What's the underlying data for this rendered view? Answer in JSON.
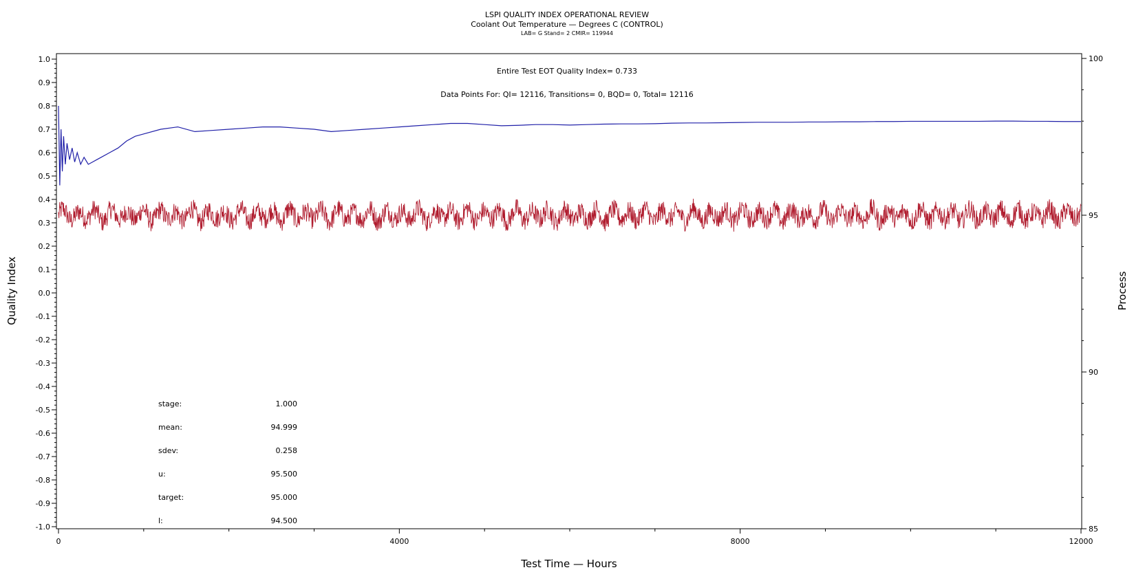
{
  "chart_data": {
    "type": "line",
    "title": "LSPI QUALITY INDEX OPERATIONAL REVIEW",
    "subtitle": "Coolant Out Temperature — Degrees C (CONTROL)",
    "subtitle2": "LAB= G Stand= 2 CMIR= 119944",
    "xlabel": "Test Time — Hours",
    "ylabel_left": "Quality Index",
    "ylabel_right": "Process",
    "xlim": [
      0,
      12000
    ],
    "ylim_left": [
      -1.0,
      1.0
    ],
    "ylim_right": [
      85,
      100
    ],
    "x_ticks": [
      "0",
      "4000",
      "8000",
      "12000"
    ],
    "x_tick_values": [
      0,
      4000,
      8000,
      12000
    ],
    "y_left_ticks": [
      "1.0",
      "0.9",
      "0.8",
      "0.7",
      "0.6",
      "0.5",
      "0.4",
      "0.3",
      "0.2",
      "0.1",
      "0.0",
      "-0.1",
      "-0.2",
      "-0.3",
      "-0.4",
      "-0.5",
      "-0.6",
      "-0.7",
      "-0.8",
      "-0.9",
      "-1.0"
    ],
    "y_left_tick_values": [
      1.0,
      0.9,
      0.8,
      0.7,
      0.6,
      0.5,
      0.4,
      0.3,
      0.2,
      0.1,
      0.0,
      -0.1,
      -0.2,
      -0.3,
      -0.4,
      -0.5,
      -0.6,
      -0.7,
      -0.8,
      -0.9,
      -1.0
    ],
    "y_right_ticks": [
      "100",
      "95",
      "90",
      "85"
    ],
    "y_right_tick_values": [
      100,
      95,
      90,
      85
    ],
    "annotations": {
      "eot_qi": "Entire Test EOT Quality Index=   0.733",
      "data_points": "Data Points For: QI= 12116, Transitions=     0, BQD=     0, Total= 12116"
    },
    "stats": [
      {
        "label": "stage:",
        "value": "1.000"
      },
      {
        "label": "mean:",
        "value": "94.999"
      },
      {
        "label": "sdev:",
        "value": "0.258"
      },
      {
        "label": "u:",
        "value": "95.500"
      },
      {
        "label": "target:",
        "value": "95.000"
      },
      {
        "label": "l:",
        "value": "94.500"
      }
    ],
    "series": [
      {
        "axis": "left",
        "color": "#1f1fa8",
        "x": [
          0,
          15,
          30,
          45,
          60,
          80,
          100,
          130,
          160,
          190,
          220,
          260,
          300,
          350,
          400,
          450,
          500,
          600,
          700,
          800,
          900,
          1000,
          1200,
          1400,
          1600,
          1800,
          2000,
          2200,
          2400,
          2600,
          2800,
          3000,
          3200,
          3400,
          3600,
          3800,
          4000,
          4200,
          4400,
          4600,
          4800,
          5000,
          5200,
          5400,
          5600,
          5800,
          6000,
          6200,
          6400,
          6600,
          6800,
          7000,
          7200,
          7400,
          7600,
          7800,
          8000,
          8200,
          8400,
          8600,
          8800,
          9000,
          9200,
          9400,
          9600,
          9800,
          10000,
          10200,
          10400,
          10600,
          10800,
          11000,
          11200,
          11400,
          11600,
          11800,
          12000
        ],
        "y": [
          0.8,
          0.46,
          0.7,
          0.52,
          0.67,
          0.55,
          0.64,
          0.57,
          0.62,
          0.56,
          0.6,
          0.55,
          0.58,
          0.55,
          0.56,
          0.57,
          0.58,
          0.6,
          0.62,
          0.65,
          0.67,
          0.68,
          0.7,
          0.71,
          0.69,
          0.695,
          0.7,
          0.705,
          0.71,
          0.71,
          0.705,
          0.7,
          0.69,
          0.695,
          0.7,
          0.705,
          0.71,
          0.715,
          0.72,
          0.725,
          0.725,
          0.72,
          0.715,
          0.717,
          0.72,
          0.72,
          0.718,
          0.72,
          0.722,
          0.723,
          0.723,
          0.724,
          0.726,
          0.727,
          0.727,
          0.728,
          0.729,
          0.73,
          0.73,
          0.73,
          0.731,
          0.731,
          0.732,
          0.732,
          0.733,
          0.733,
          0.734,
          0.734,
          0.734,
          0.734,
          0.734,
          0.735,
          0.735,
          0.734,
          0.734,
          0.733,
          0.733
        ]
      },
      {
        "axis": "right",
        "color": "#b01c2e",
        "mean": 94.999,
        "sdev": 0.258,
        "x_range": [
          0,
          12000
        ],
        "n_points": 12116
      }
    ],
    "grid": false,
    "legend": "none"
  }
}
